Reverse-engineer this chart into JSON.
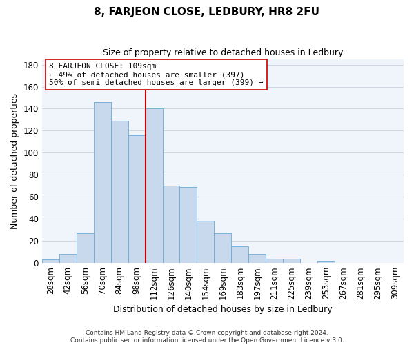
{
  "title": "8, FARJEON CLOSE, LEDBURY, HR8 2FU",
  "subtitle": "Size of property relative to detached houses in Ledbury",
  "xlabel": "Distribution of detached houses by size in Ledbury",
  "ylabel": "Number of detached properties",
  "bar_labels": [
    "28sqm",
    "42sqm",
    "56sqm",
    "70sqm",
    "84sqm",
    "98sqm",
    "112sqm",
    "126sqm",
    "140sqm",
    "154sqm",
    "169sqm",
    "183sqm",
    "197sqm",
    "211sqm",
    "225sqm",
    "239sqm",
    "253sqm",
    "267sqm",
    "281sqm",
    "295sqm",
    "309sqm"
  ],
  "bar_heights": [
    3,
    8,
    27,
    146,
    129,
    116,
    140,
    70,
    69,
    38,
    27,
    15,
    8,
    4,
    4,
    0,
    2,
    0,
    0,
    0,
    0
  ],
  "bar_color": "#c8d9ee",
  "bar_edge_color": "#6aaad4",
  "vline_x_index": 6,
  "vline_color": "#cc0000",
  "annotation_text": "8 FARJEON CLOSE: 109sqm\n← 49% of detached houses are smaller (397)\n50% of semi-detached houses are larger (399) →",
  "annotation_box_facecolor": "#ffffff",
  "annotation_box_edgecolor": "#cc0000",
  "ylim": [
    0,
    185
  ],
  "yticks": [
    0,
    20,
    40,
    60,
    80,
    100,
    120,
    140,
    160,
    180
  ],
  "footer1": "Contains HM Land Registry data © Crown copyright and database right 2024.",
  "footer2": "Contains public sector information licensed under the Open Government Licence v 3.0.",
  "fig_facecolor": "#ffffff",
  "plot_facecolor": "#f0f4fb",
  "grid_color": "#d0d8e8",
  "title_fontsize": 11,
  "subtitle_fontsize": 9,
  "ylabel_fontsize": 9,
  "xlabel_fontsize": 9,
  "tick_fontsize": 8.5,
  "annotation_fontsize": 8
}
